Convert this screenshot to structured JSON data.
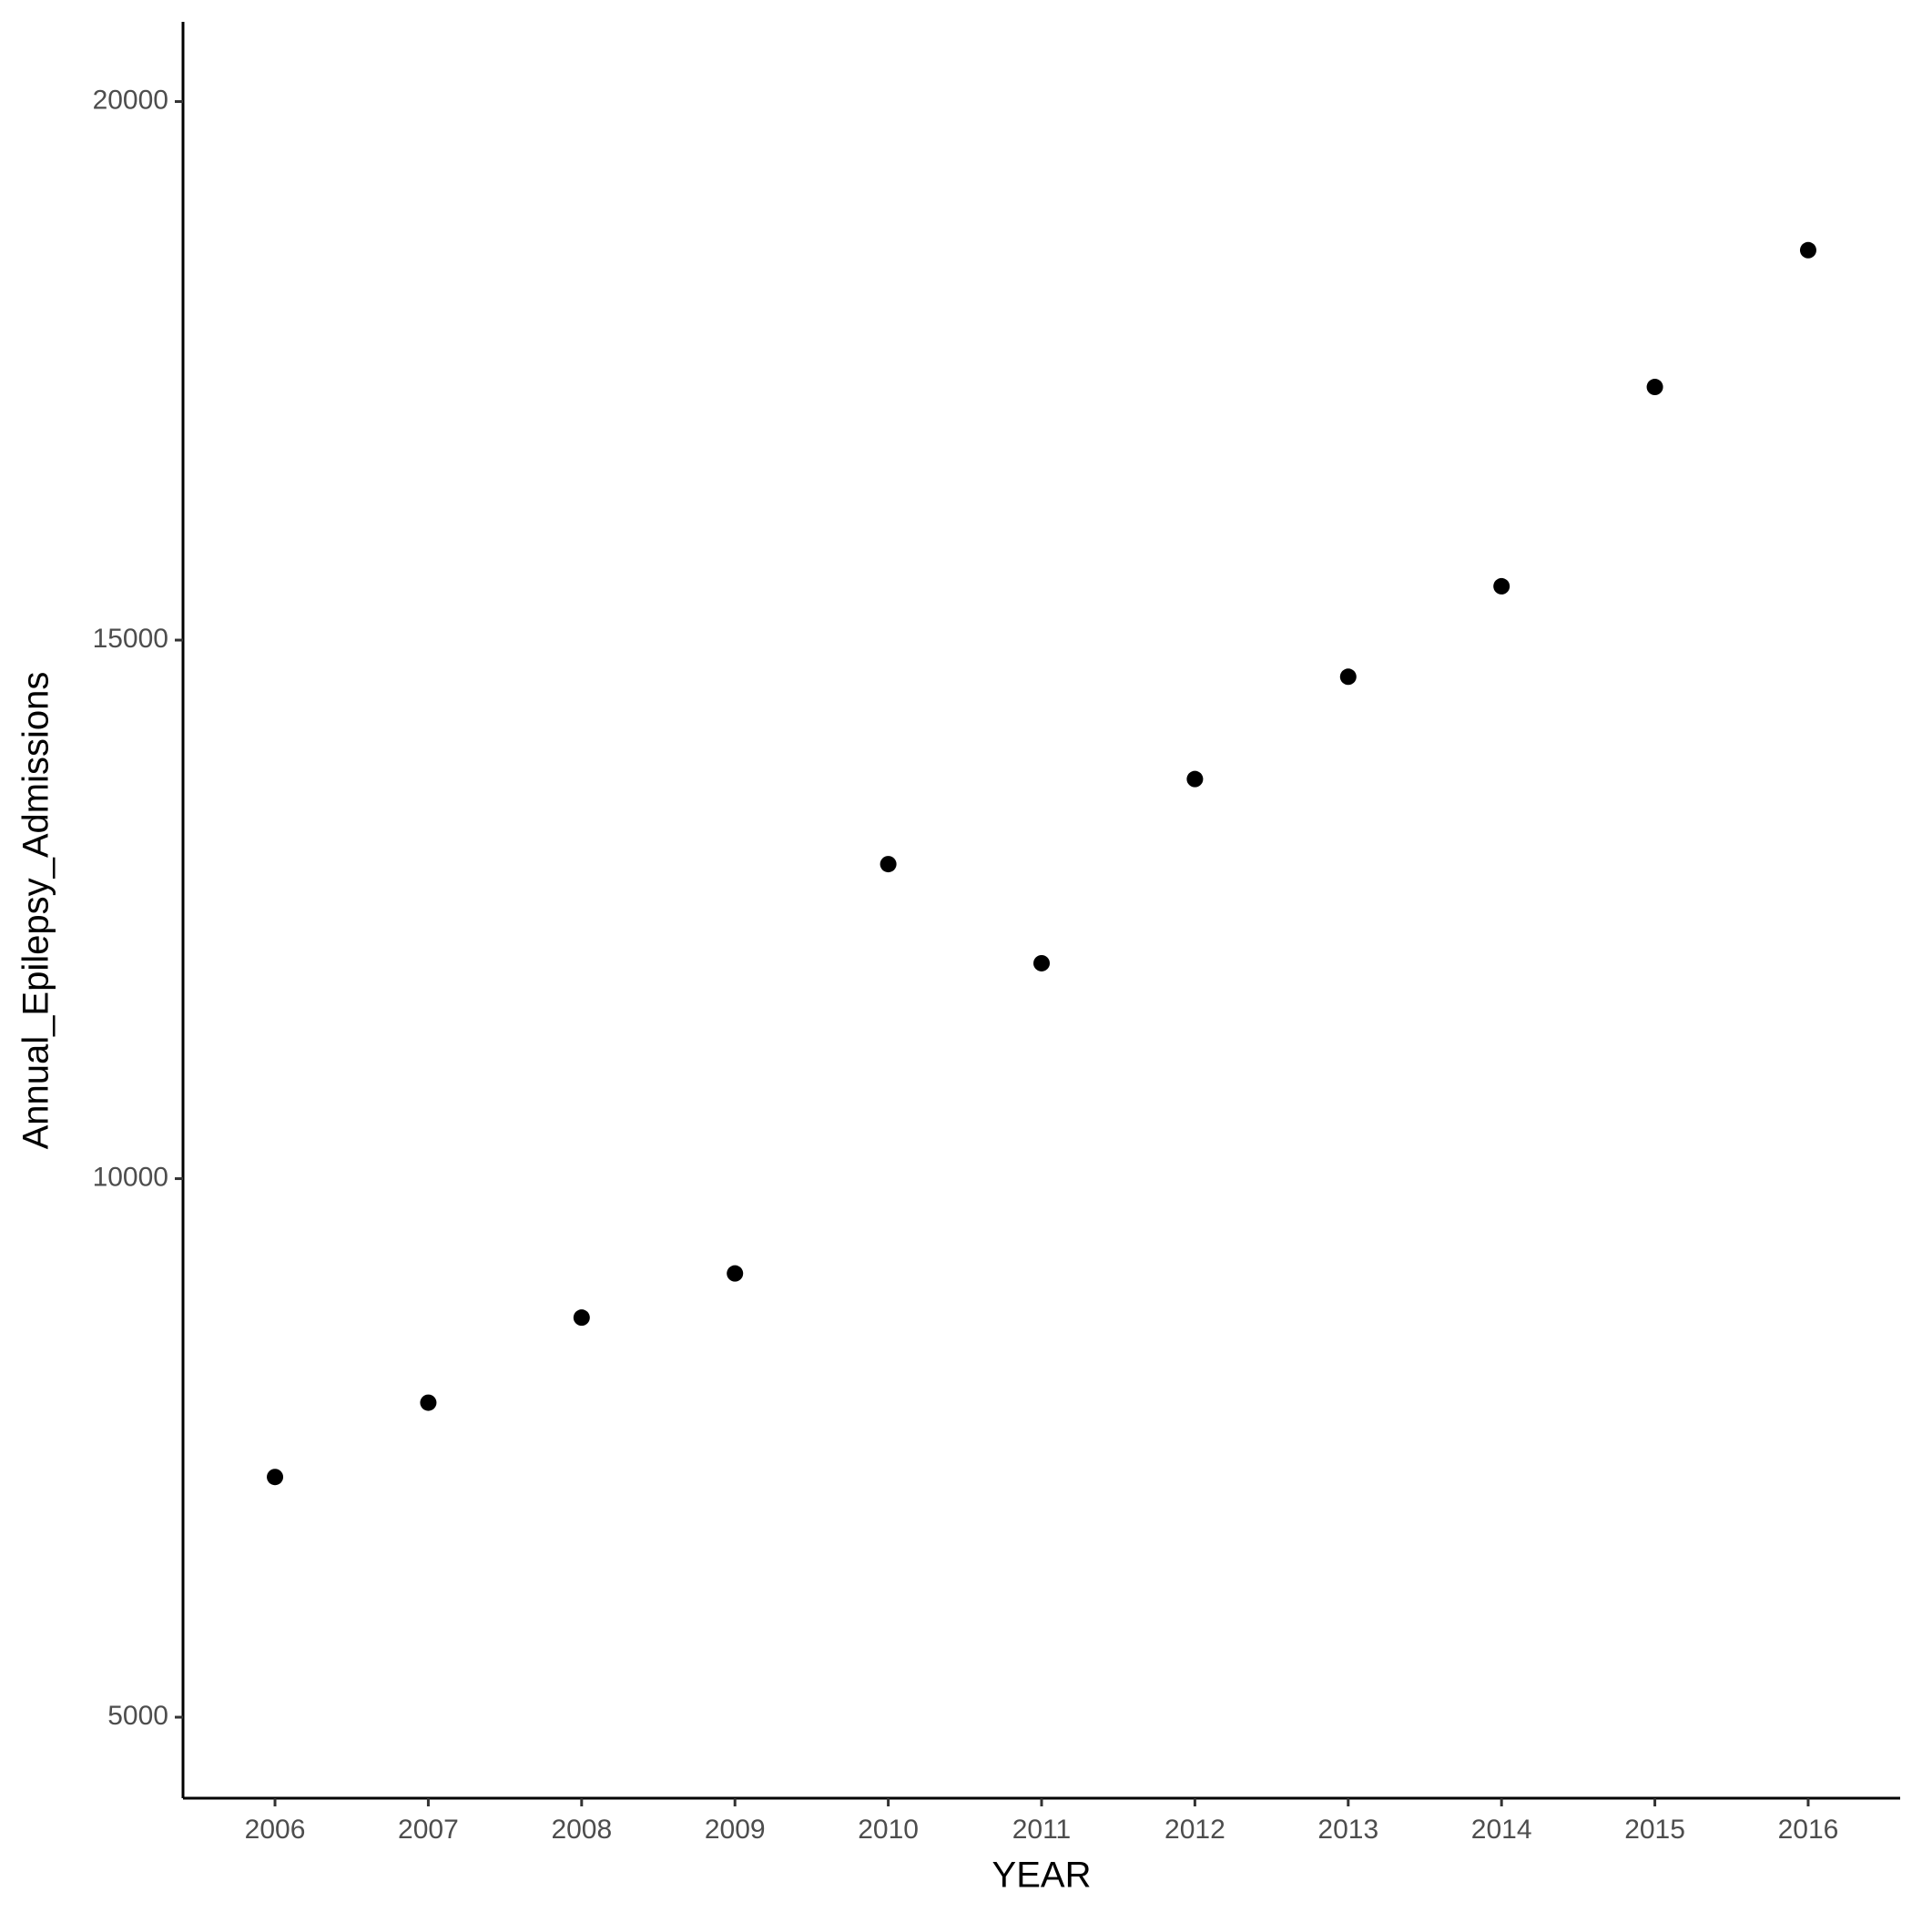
{
  "chart_data": {
    "type": "scatter",
    "x_label": "YEAR",
    "y_label": "Annual_Epilepsy_Admissions",
    "x": [
      2006,
      2007,
      2008,
      2009,
      2010,
      2011,
      2012,
      2013,
      2014,
      2015,
      2016
    ],
    "values": [
      7230,
      7920,
      8710,
      9120,
      12920,
      12000,
      13710,
      14660,
      15500,
      17350,
      18620
    ],
    "color": "#000000",
    "xlim": [
      2005.4,
      2016.6
    ],
    "xticks": [
      2006,
      2007,
      2008,
      2009,
      2010,
      2011,
      2012,
      2013,
      2014,
      2015,
      2016
    ],
    "ylim": [
      4248,
      20740
    ],
    "yticks": [
      5000,
      10000,
      15000,
      20000
    ],
    "grid": false
  }
}
